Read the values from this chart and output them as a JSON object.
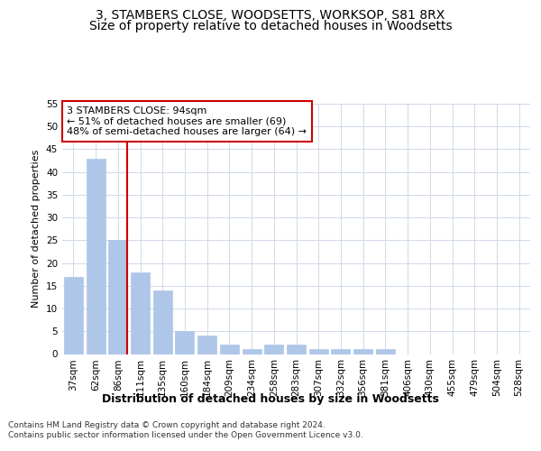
{
  "title_line1": "3, STAMBERS CLOSE, WOODSETTS, WORKSOP, S81 8RX",
  "title_line2": "Size of property relative to detached houses in Woodsetts",
  "xlabel": "Distribution of detached houses by size in Woodsetts",
  "ylabel": "Number of detached properties",
  "categories": [
    "37sqm",
    "62sqm",
    "86sqm",
    "111sqm",
    "135sqm",
    "160sqm",
    "184sqm",
    "209sqm",
    "234sqm",
    "258sqm",
    "283sqm",
    "307sqm",
    "332sqm",
    "356sqm",
    "381sqm",
    "406sqm",
    "430sqm",
    "455sqm",
    "479sqm",
    "504sqm",
    "528sqm"
  ],
  "values": [
    17,
    43,
    25,
    18,
    14,
    5,
    4,
    2,
    1,
    2,
    2,
    1,
    1,
    1,
    1,
    0,
    0,
    0,
    0,
    0,
    0
  ],
  "ylim": [
    0,
    55
  ],
  "yticks": [
    0,
    5,
    10,
    15,
    20,
    25,
    30,
    35,
    40,
    45,
    50,
    55
  ],
  "bar_color": "#aec6e8",
  "bar_edge_color": "#aec6e8",
  "vline_x_index": 2,
  "vline_color": "#cc0000",
  "annotation_text": "3 STAMBERS CLOSE: 94sqm\n← 51% of detached houses are smaller (69)\n48% of semi-detached houses are larger (64) →",
  "annotation_box_color": "#ffffff",
  "annotation_box_edge_color": "#cc0000",
  "footer_text": "Contains HM Land Registry data © Crown copyright and database right 2024.\nContains public sector information licensed under the Open Government Licence v3.0.",
  "bg_color": "#ffffff",
  "grid_color": "#d0d8e8",
  "title_fontsize": 10,
  "subtitle_fontsize": 10,
  "xlabel_fontsize": 9,
  "ylabel_fontsize": 8,
  "tick_fontsize": 7.5,
  "annotation_fontsize": 8,
  "footer_fontsize": 6.5
}
